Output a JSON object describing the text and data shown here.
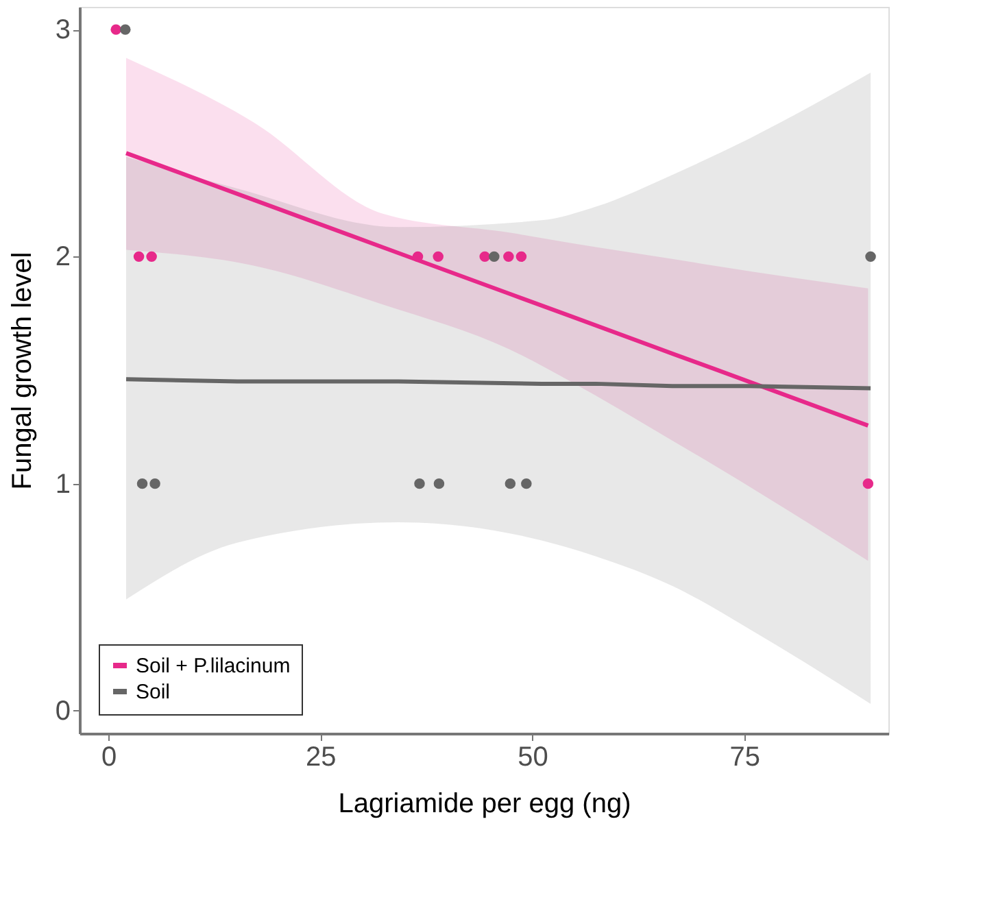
{
  "chart_data": {
    "type": "scatter",
    "xlabel": "Lagriamide per egg (ng)",
    "ylabel": "Fungal growth level",
    "xlim": [
      -3.4,
      92
    ],
    "ylim": [
      -0.1,
      3.1
    ],
    "xticks": [
      0,
      25,
      50,
      75
    ],
    "yticks": [
      {
        "value": 0,
        "label": "0"
      },
      {
        "value": 1,
        "label": "1"
      },
      {
        "value": 2,
        "label": "2"
      },
      {
        "value": 3,
        "label": "3"
      }
    ],
    "grid": false,
    "legend": "bottom left",
    "series": [
      {
        "type": "line",
        "name": "Soil + P.lilacinum",
        "color": "#e7298a",
        "marker": "none",
        "line_style": "solid",
        "x": [
          2.1,
          17.2,
          32.3,
          47.4,
          54.5,
          66.5,
          71.5,
          89.6
        ],
        "values": [
          2.456,
          2.249,
          2.042,
          1.835,
          1.738,
          1.573,
          1.505,
          1.256
        ],
        "lower": [
          2.03,
          1.96,
          1.79,
          1.59,
          1.45,
          1.19,
          1.08,
          0.66
        ],
        "upper": [
          2.875,
          2.59,
          2.19,
          2.105,
          2.06,
          1.99,
          1.96,
          1.86
        ]
      },
      {
        "type": "line",
        "name": "Soil",
        "color": "#666666",
        "marker": "none",
        "line_style": "solid",
        "x": [
          2.1,
          15.2,
          34.2,
          51.1,
          57.5,
          66.5,
          75.6,
          89.9
        ],
        "values": [
          1.46,
          1.45,
          1.45,
          1.44,
          1.44,
          1.43,
          1.43,
          1.42
        ],
        "lower": [
          0.49,
          0.74,
          0.83,
          0.75,
          0.68,
          0.55,
          0.36,
          0.03
        ],
        "upper": [
          2.44,
          2.3,
          2.13,
          2.16,
          2.22,
          2.36,
          2.52,
          2.81
        ]
      },
      {
        "type": "scatter",
        "color": "#e7298a",
        "marker": "circle",
        "x": [
          0.9,
          3.6,
          5.1,
          36.5,
          38.9,
          44.4,
          47.2,
          48.7,
          89.6
        ],
        "values": [
          3,
          2,
          2,
          2,
          2,
          2,
          2,
          2,
          1
        ]
      },
      {
        "type": "scatter",
        "color": "#666666",
        "marker": "circle",
        "x": [
          2.0,
          4.0,
          5.5,
          36.7,
          39.0,
          45.5,
          47.4,
          49.3,
          89.9
        ],
        "values": [
          3,
          1,
          1,
          1,
          1,
          2,
          1,
          1,
          2
        ]
      }
    ]
  }
}
